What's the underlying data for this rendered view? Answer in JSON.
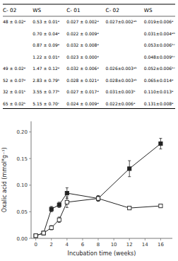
{
  "chart_data": {
    "type": "line",
    "x": [
      0,
      1,
      2,
      3,
      4,
      8,
      12,
      16
    ],
    "series": [
      {
        "values": [
          0.005,
          0.01,
          0.055,
          0.063,
          0.085,
          0.075,
          0.131,
          0.178
        ],
        "yerr": [
          0.002,
          0.003,
          0.005,
          0.005,
          0.01,
          0.005,
          0.015,
          0.01
        ],
        "marker": "square",
        "line_style": "solid"
      },
      {
        "values": [
          0.005,
          0.01,
          0.02,
          0.035,
          0.068,
          0.075,
          0.057,
          0.061
        ],
        "yerr": [
          0.002,
          0.003,
          0.004,
          0.005,
          0.01,
          0.005,
          0.003,
          0.003
        ],
        "marker": "square-open",
        "line_style": "solid"
      }
    ],
    "color": "#222222",
    "x_label": "Incubation time (weeks)",
    "y_label": "Oxalic acid (mmol*g⁻¹)",
    "xlim": [
      -0.6,
      17.5
    ],
    "ylim": [
      0.0,
      0.22
    ],
    "xticks": [
      0,
      2,
      4,
      6,
      8,
      10,
      12,
      14,
      16
    ],
    "yticks": [
      {
        "value": 0.0,
        "label": "0.00"
      },
      {
        "value": 0.05,
        "label": "0.05"
      },
      {
        "value": 0.1,
        "label": "0.10"
      },
      {
        "value": 0.15,
        "label": "0.15"
      },
      {
        "value": 0.2,
        "label": "0.20"
      }
    ],
    "grid": false,
    "table": {
      "header": [
        "C- 02",
        "WS",
        "C- 01",
        "C- 02",
        "WS"
      ],
      "rows": [
        [
          "48 ± 0.02ᵃ",
          "0.53 ± 0.01ᵃ",
          "0.027 ± 0.002ᵃ",
          "0.027±0.002ᵃᵇ",
          "0.019±0.006ᵃ"
        ],
        [
          null,
          "0.70 ± 0.04ᵃ",
          "0.022 ± 0.009ᵃ",
          null,
          "0.031±0.004ᵃᵇ"
        ],
        [
          null,
          "0.87 ± 0.09ᵃ",
          "0.032 ± 0.008ᵃ",
          null,
          "0.053±0.006ᵇᶜ"
        ],
        [
          null,
          "1.22 ± 0.01ᵃ",
          "0.023 ± 0.000ᵃ",
          null,
          "0.048±0.009ᵇᶜ"
        ],
        [
          "49 ± 0.02ᵃ",
          "1.47 ± 0.12ᵃ",
          "0.032 ± 0.006ᵃ",
          "0.026±0.003ᵃᵇ",
          "0.052±0.006ᵇᶜ"
        ],
        [
          "52 ± 0.07ᵃ",
          "2.83 ± 0.79ᵇ",
          "0.028 ± 0.021ᵃ",
          "0.028±0.003ᵃᵇ",
          "0.065±0.014ᵃ"
        ],
        [
          "32 ± 0.01ᵇ",
          "3.55 ± 0.77ᵇ",
          "0.027 ± 0.017ᵃ",
          "0.031±0.003ᵇ",
          "0.110±0.013ᵃ"
        ],
        [
          "65 ± 0.02ᵇ",
          "5.15 ± 0.70ᶜ",
          "0.024 ± 0.009ᵃ",
          "0.022±0.006ᵃ",
          "0.131±0.008ᵃ"
        ]
      ]
    }
  }
}
